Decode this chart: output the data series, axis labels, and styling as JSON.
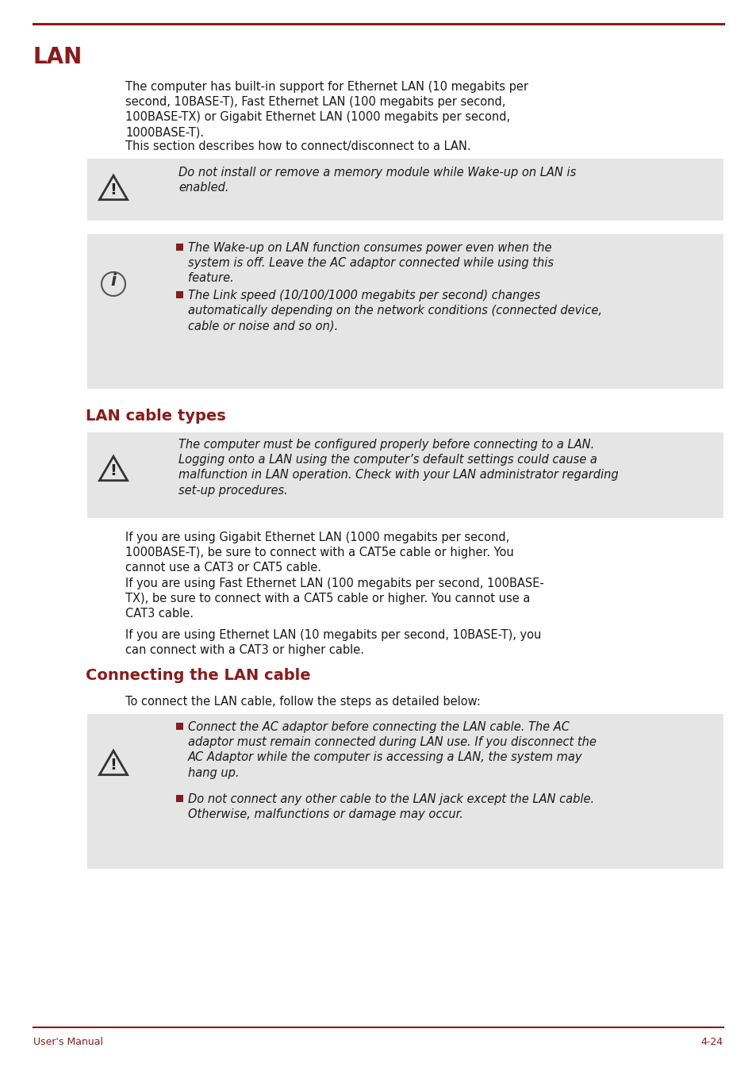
{
  "bg_color": "#ffffff",
  "accent_color": "#8B1A1A",
  "text_color": "#1a1a1a",
  "footer_line_color": "#8B1A1A",
  "header_line_color": "#8B1A1A",
  "box_bg_color": "#e5e5e5",
  "title_main": "LAN",
  "section1_title": "LAN cable types",
  "section2_title": "Connecting the LAN cable",
  "footer_left": "User's Manual",
  "footer_right": "4-24",
  "para1": "The computer has built-in support for Ethernet LAN (10 megabits per\nsecond, 10BASE-T), Fast Ethernet LAN (100 megabits per second,\n100BASE-TX) or Gigabit Ethernet LAN (1000 megabits per second,\n1000BASE-T).",
  "para2": "This section describes how to connect/disconnect to a LAN.",
  "warning1_text": "Do not install or remove a memory module while Wake-up on LAN is\nenabled.",
  "info_bullet1": "The Wake-up on LAN function consumes power even when the\nsystem is off. Leave the AC adaptor connected while using this\nfeature.",
  "info_bullet2": "The Link speed (10/100/1000 megabits per second) changes\nautomatically depending on the network conditions (connected device,\ncable or noise and so on).",
  "warning2_text": "The computer must be configured properly before connecting to a LAN.\nLogging onto a LAN using the computer’s default settings could cause a\nmalfunction in LAN operation. Check with your LAN administrator regarding\nset-up procedures.",
  "cable_para1": "If you are using Gigabit Ethernet LAN (1000 megabits per second,\n1000BASE-T), be sure to connect with a CAT5e cable or higher. You\ncannot use a CAT3 or CAT5 cable.",
  "cable_para2": "If you are using Fast Ethernet LAN (100 megabits per second, 100BASE-\nTX), be sure to connect with a CAT5 cable or higher. You cannot use a\nCAT3 cable.",
  "cable_para3": "If you are using Ethernet LAN (10 megabits per second, 10BASE-T), you\ncan connect with a CAT3 or higher cable.",
  "connect_intro": "To connect the LAN cable, follow the steps as detailed below:",
  "connect_bullet1": "Connect the AC adaptor before connecting the LAN cable. The AC\nadaptor must remain connected during LAN use. If you disconnect the\nAC Adaptor while the computer is accessing a LAN, the system may\nhang up.",
  "connect_bullet2": "Do not connect any other cable to the LAN jack except the LAN cable.\nOtherwise, malfunctions or damage may occur."
}
